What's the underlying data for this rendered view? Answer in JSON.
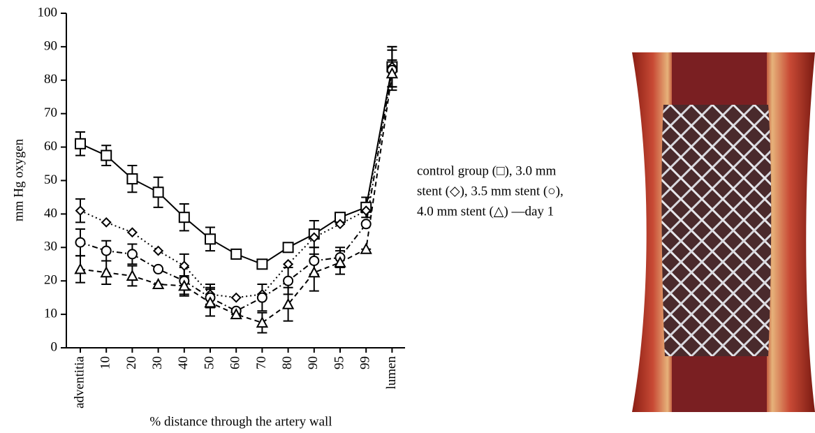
{
  "chart_data": {
    "type": "line",
    "xlabel": "% distance through the artery wall",
    "ylabel": "mm Hg oxygen",
    "categories": [
      "adventitia",
      "10",
      "20",
      "30",
      "40",
      "50",
      "60",
      "70",
      "80",
      "90",
      "95",
      "99",
      "lumen"
    ],
    "ylim": [
      0,
      100
    ],
    "yticks": [
      0,
      10,
      20,
      30,
      40,
      50,
      60,
      70,
      80,
      90,
      100
    ],
    "annotation": [
      "control group (□), 3.0 mm",
      "stent (◇), 3.5 mm stent (○),",
      "4.0 mm stent (△) —day 1"
    ],
    "series": [
      {
        "color": "#000000",
        "marker": "square",
        "dash": "solid",
        "values": [
          61,
          57.5,
          50.5,
          46.5,
          39,
          32.5,
          28,
          25,
          30,
          34,
          39,
          42,
          84
        ],
        "errors": [
          3.5,
          3,
          4,
          4.5,
          4,
          3.5,
          0,
          0,
          0,
          4,
          0,
          3,
          6
        ]
      },
      {
        "color": "#000000",
        "marker": "diamond",
        "dash": "dotted",
        "values": [
          41,
          37.5,
          34.5,
          29,
          24.5,
          16,
          15,
          16,
          25,
          33,
          37,
          41,
          84
        ],
        "errors": [
          3.5,
          0,
          0,
          0,
          3.5,
          3,
          0,
          0,
          0,
          0,
          0,
          0,
          6
        ]
      },
      {
        "color": "#000000",
        "marker": "circle",
        "dash": "dashdot",
        "values": [
          31.5,
          29,
          28,
          23.5,
          20,
          15,
          11,
          15,
          20,
          26,
          27,
          37,
          83
        ],
        "errors": [
          4,
          3,
          3,
          0,
          4,
          3,
          0,
          4,
          4,
          4,
          3,
          0,
          6
        ]
      },
      {
        "color": "#000000",
        "marker": "triangle",
        "dash": "dashed",
        "values": [
          23.5,
          22.5,
          21.5,
          19,
          18.5,
          13.5,
          10,
          7.5,
          13,
          22.5,
          25.5,
          29.5,
          82
        ],
        "errors": [
          4,
          3.5,
          3,
          0,
          3,
          4,
          0,
          3,
          5,
          5.5,
          3.5,
          0,
          4
        ]
      }
    ]
  }
}
